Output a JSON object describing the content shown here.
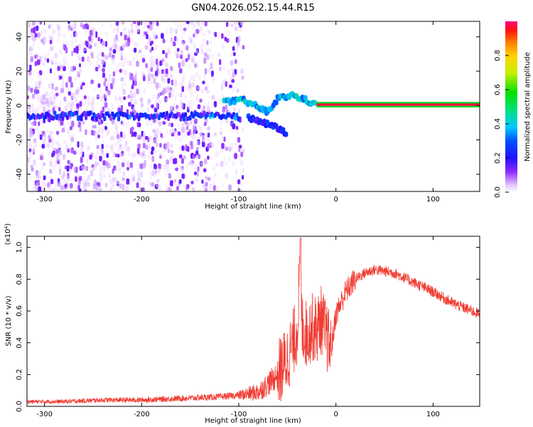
{
  "title": "GN04.2026.052.15.44.R15",
  "colors": {
    "snr_line": "#f03c32",
    "axis": "#000000",
    "background": "#ffffff"
  },
  "chart_data": [
    {
      "type": "heatmap",
      "title": "GN04.2026.052.15.44.R15",
      "xlabel": "Height of straight line (km)",
      "ylabel": "Frequency (Hz)",
      "xlim": [
        -318,
        148
      ],
      "ylim": [
        -50,
        49
      ],
      "x_ticks": [
        -300,
        -200,
        -100,
        0,
        100
      ],
      "x_tick_labels": [
        "-300",
        "-200",
        "-100",
        "0",
        "100"
      ],
      "y_ticks": [
        -40,
        -20,
        0,
        20,
        40
      ],
      "y_tick_labels": [
        "-40",
        "-20",
        "0",
        "20",
        "40"
      ],
      "colorbar": {
        "label": "Normalized spectral amplitude",
        "range": [
          0,
          1
        ],
        "ticks": [
          0.0,
          0.2,
          0.4,
          0.6,
          0.8
        ],
        "tick_labels": [
          "0.0",
          "0.2",
          "0.4",
          "0.6",
          "0.8"
        ]
      },
      "features": [
        {
          "name": "noise",
          "x_range": [
            -318,
            -95
          ],
          "y_range": [
            -50,
            49
          ],
          "amplitude": [
            0.02,
            0.12
          ]
        },
        {
          "name": "band",
          "x_range": [
            -318,
            -100
          ],
          "y_center": -6,
          "amplitude": [
            0.1,
            0.3
          ]
        },
        {
          "name": "branch-upper",
          "points": [
            [
              -115,
              2
            ],
            [
              -95,
              3
            ],
            [
              -80,
              -1
            ],
            [
              -70,
              -4
            ],
            [
              -60,
              4
            ],
            [
              -45,
              6
            ],
            [
              -30,
              3
            ],
            [
              -20,
              0
            ]
          ],
          "amplitude": [
            0.3,
            0.45
          ]
        },
        {
          "name": "branch-lower",
          "points": [
            [
              -90,
              -7
            ],
            [
              -75,
              -10
            ],
            [
              -60,
              -13
            ],
            [
              -50,
              -17
            ]
          ],
          "amplitude": [
            0.15,
            0.3
          ]
        },
        {
          "name": "carrier",
          "x_range": [
            -20,
            148
          ],
          "y_center": 0.5,
          "amplitude": [
            0.95,
            1.0
          ]
        }
      ]
    },
    {
      "type": "line",
      "xlabel": "Height of straight line (km)",
      "ylabel": "SNR (10 * v/v)",
      "y_multiplier": "(x10⁴)",
      "xlim": [
        -318,
        148
      ],
      "ylim": [
        0,
        1.07
      ],
      "x_ticks": [
        -300,
        -200,
        -100,
        0,
        100
      ],
      "x_tick_labels": [
        "-300",
        "-200",
        "-100",
        "0",
        "100"
      ],
      "y_ticks": [
        0.0,
        0.2,
        0.4,
        0.6,
        0.8,
        1.0
      ],
      "y_tick_labels": [
        "0.0",
        "0.2",
        "0.4",
        "0.6",
        "0.8",
        "1.0"
      ],
      "series": [
        {
          "x": [
            -318,
            -280,
            -240,
            -200,
            -160,
            -120,
            -100,
            -80,
            -70,
            -60,
            -55,
            -50,
            -45,
            -40,
            -37,
            -35,
            -30,
            -25,
            -20,
            -15,
            -10,
            -5,
            0,
            10,
            20,
            30,
            40,
            50,
            60,
            80,
            100,
            120,
            148
          ],
          "values": [
            0.03,
            0.03,
            0.04,
            0.04,
            0.05,
            0.06,
            0.07,
            0.09,
            0.14,
            0.2,
            0.25,
            0.3,
            0.38,
            0.48,
            0.85,
            0.5,
            0.45,
            0.5,
            0.48,
            0.55,
            0.45,
            0.35,
            0.58,
            0.72,
            0.8,
            0.84,
            0.86,
            0.85,
            0.84,
            0.78,
            0.72,
            0.65,
            0.58
          ]
        }
      ]
    }
  ]
}
